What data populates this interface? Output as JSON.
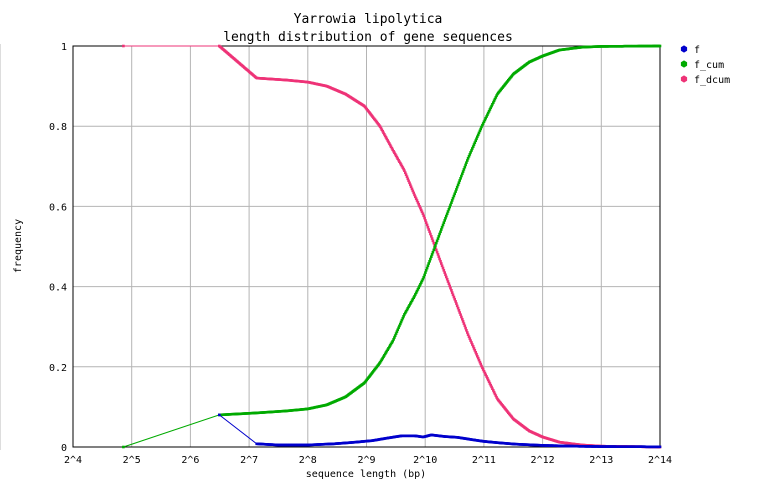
{
  "chart_data": {
    "type": "line",
    "title": "Yarrowia lipolytica",
    "subtitle": "length distribution of gene sequences",
    "xlabel": "sequence length (bp)",
    "ylabel": "frequency",
    "x_scale": "log2",
    "xlim": [
      16,
      16384
    ],
    "ylim": [
      0,
      1
    ],
    "x_ticks": [
      16,
      32,
      64,
      128,
      256,
      512,
      1024,
      2048,
      4096,
      8192,
      16384
    ],
    "x_tick_labels": [
      "2^4",
      "2^5",
      "2^6",
      "2^7",
      "2^8",
      "2^9",
      "2^10",
      "2^11",
      "2^12",
      "2^13",
      "2^14"
    ],
    "y_ticks": [
      0,
      0.2,
      0.4,
      0.6,
      0.8,
      1
    ],
    "y_tick_labels": [
      "0",
      "0.2",
      "0.4",
      "0.6",
      "0.8",
      "1"
    ],
    "grid": true,
    "legend_position": "top-right",
    "series": [
      {
        "name": "f",
        "color": "#0000cc",
        "points": [
          [
            90,
            0.08
          ],
          [
            140,
            0.008
          ],
          [
            180,
            0.005
          ],
          [
            256,
            0.005
          ],
          [
            350,
            0.008
          ],
          [
            450,
            0.012
          ],
          [
            550,
            0.016
          ],
          [
            650,
            0.022
          ],
          [
            780,
            0.028
          ],
          [
            900,
            0.028
          ],
          [
            1000,
            0.025
          ],
          [
            1100,
            0.03
          ],
          [
            1300,
            0.026
          ],
          [
            1500,
            0.024
          ],
          [
            1800,
            0.018
          ],
          [
            2048,
            0.014
          ],
          [
            2500,
            0.01
          ],
          [
            3000,
            0.007
          ],
          [
            4096,
            0.004
          ],
          [
            6000,
            0.002
          ],
          [
            8192,
            0.001
          ],
          [
            16384,
            0.0005
          ]
        ]
      },
      {
        "name": "f_cum",
        "color": "#00aa00",
        "points": [
          [
            29,
            0.0
          ],
          [
            90,
            0.08
          ],
          [
            140,
            0.085
          ],
          [
            200,
            0.09
          ],
          [
            256,
            0.095
          ],
          [
            320,
            0.105
          ],
          [
            400,
            0.125
          ],
          [
            500,
            0.16
          ],
          [
            600,
            0.21
          ],
          [
            700,
            0.265
          ],
          [
            800,
            0.33
          ],
          [
            900,
            0.375
          ],
          [
            1000,
            0.42
          ],
          [
            1150,
            0.5
          ],
          [
            1300,
            0.57
          ],
          [
            1500,
            0.65
          ],
          [
            1700,
            0.72
          ],
          [
            2000,
            0.8
          ],
          [
            2400,
            0.88
          ],
          [
            2900,
            0.93
          ],
          [
            3500,
            0.96
          ],
          [
            4096,
            0.975
          ],
          [
            5000,
            0.99
          ],
          [
            6500,
            0.997
          ],
          [
            8192,
            0.999
          ],
          [
            16384,
            1.0
          ]
        ]
      },
      {
        "name": "f_dcum",
        "color": "#ee3377",
        "points": [
          [
            29,
            1.0
          ],
          [
            90,
            1.0
          ],
          [
            140,
            0.92
          ],
          [
            200,
            0.915
          ],
          [
            256,
            0.91
          ],
          [
            320,
            0.9
          ],
          [
            400,
            0.88
          ],
          [
            500,
            0.85
          ],
          [
            600,
            0.8
          ],
          [
            700,
            0.74
          ],
          [
            800,
            0.69
          ],
          [
            900,
            0.63
          ],
          [
            1000,
            0.58
          ],
          [
            1150,
            0.5
          ],
          [
            1300,
            0.43
          ],
          [
            1500,
            0.35
          ],
          [
            1700,
            0.28
          ],
          [
            2000,
            0.2
          ],
          [
            2400,
            0.12
          ],
          [
            2900,
            0.07
          ],
          [
            3500,
            0.04
          ],
          [
            4096,
            0.025
          ],
          [
            5000,
            0.012
          ],
          [
            6500,
            0.005
          ],
          [
            8192,
            0.002
          ],
          [
            16384,
            0.0
          ]
        ]
      }
    ]
  }
}
